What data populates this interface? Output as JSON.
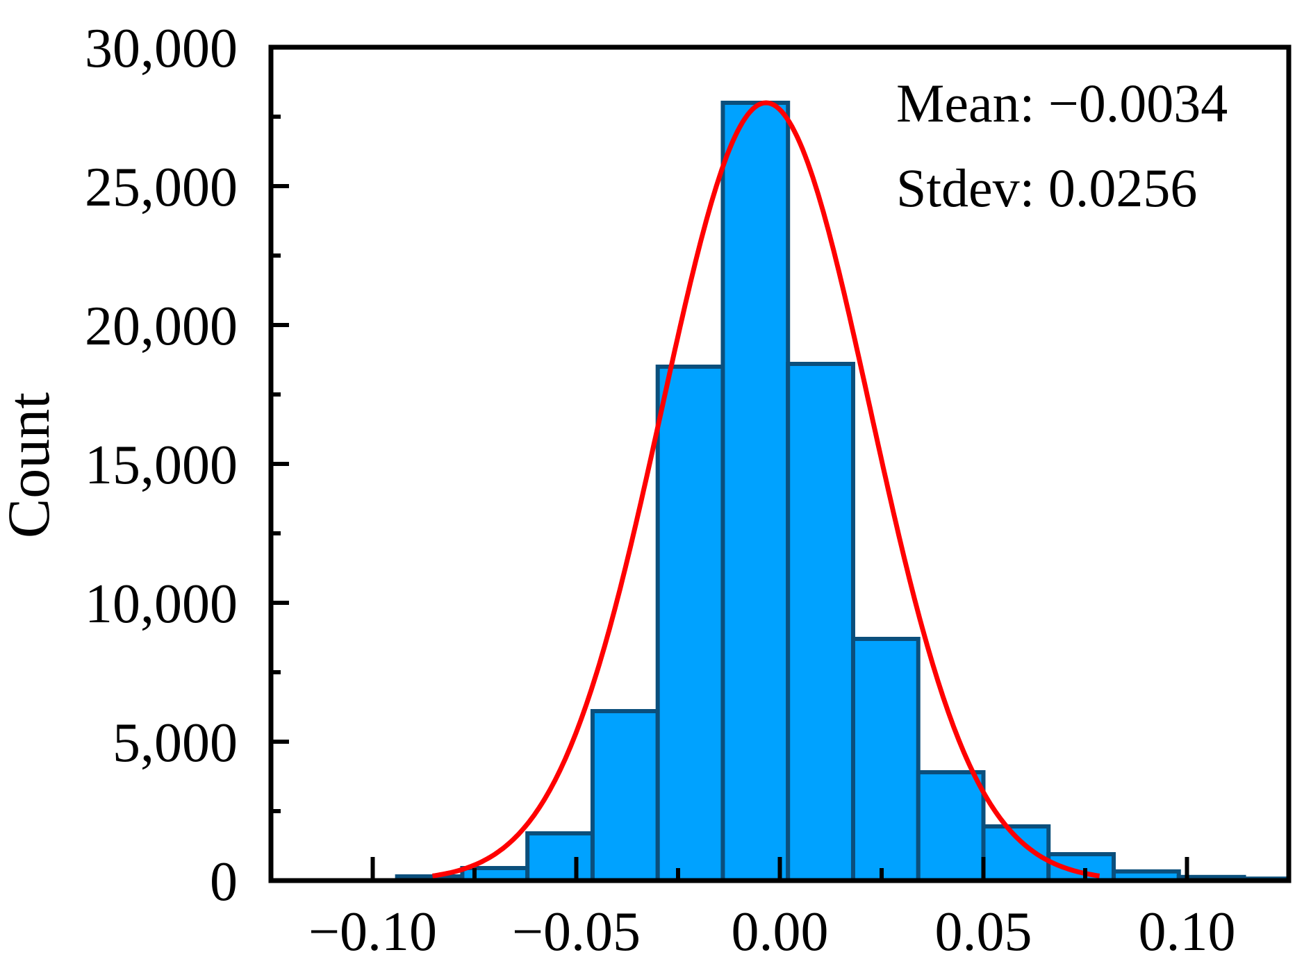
{
  "chart_data": {
    "type": "bar",
    "title": "",
    "xlabel": "",
    "ylabel": "Count",
    "xlim": [
      -0.125,
      0.125
    ],
    "ylim": [
      0,
      30000
    ],
    "bin_width": 0.016,
    "bins": [
      {
        "left": -0.126,
        "count": 0
      },
      {
        "left": -0.11,
        "count": 0
      },
      {
        "left": -0.094,
        "count": 150
      },
      {
        "left": -0.078,
        "count": 450
      },
      {
        "left": -0.062,
        "count": 1700
      },
      {
        "left": -0.046,
        "count": 6100
      },
      {
        "left": -0.03,
        "count": 18500
      },
      {
        "left": -0.014,
        "count": 28000
      },
      {
        "left": 0.002,
        "count": 18600
      },
      {
        "left": 0.018,
        "count": 8700
      },
      {
        "left": 0.034,
        "count": 3900
      },
      {
        "left": 0.05,
        "count": 1950
      },
      {
        "left": 0.066,
        "count": 950
      },
      {
        "left": 0.082,
        "count": 330
      },
      {
        "left": 0.098,
        "count": 130
      },
      {
        "left": 0.114,
        "count": 70
      }
    ],
    "fit": {
      "type": "normal",
      "mean": -0.0034,
      "stdev": 0.0256,
      "peak": 28000
    },
    "x_ticks": [
      {
        "value": -0.1,
        "label": "−0.10"
      },
      {
        "value": -0.05,
        "label": "−0.05"
      },
      {
        "value": 0.0,
        "label": "0.00"
      },
      {
        "value": 0.05,
        "label": "0.05"
      },
      {
        "value": 0.1,
        "label": "0.10"
      }
    ],
    "y_ticks": [
      {
        "value": 0,
        "label": "0"
      },
      {
        "value": 5000,
        "label": "5,000"
      },
      {
        "value": 10000,
        "label": "10,000"
      },
      {
        "value": 15000,
        "label": "15,000"
      },
      {
        "value": 20000,
        "label": "20,000"
      },
      {
        "value": 25000,
        "label": "25,000"
      },
      {
        "value": 30000,
        "label": "30,000"
      }
    ],
    "annotations": {
      "mean_text": "Mean: −0.0034",
      "stdev_text": "Stdev: 0.0256"
    },
    "colors": {
      "bar_fill": "#00a2ff",
      "bar_edge": "#0b4f7c",
      "fit_line": "#ff0000",
      "axis": "#000000"
    }
  }
}
